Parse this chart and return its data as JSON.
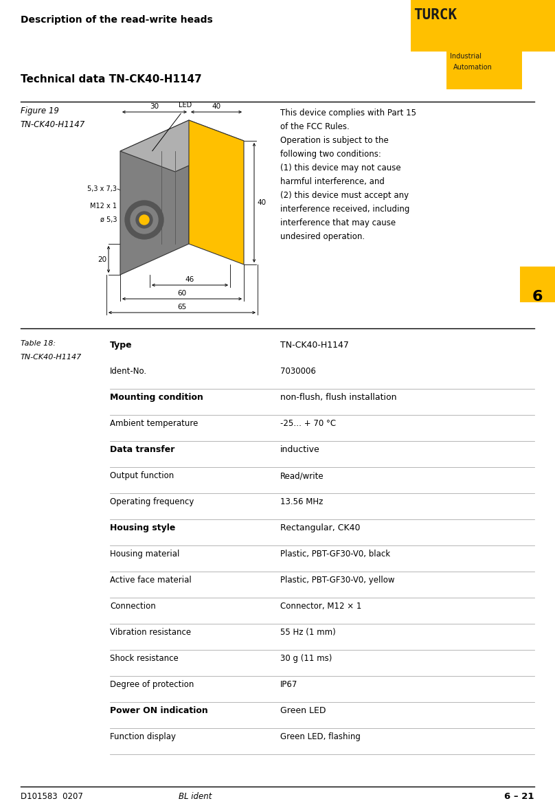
{
  "page_width": 8.08,
  "page_height": 11.66,
  "bg_color": "#ffffff",
  "header_text": "Description of the read-write heads",
  "turck_logo_text": "TURCK",
  "turck_sub1": "Industrial",
  "turck_sub2": "Automation",
  "turck_yellow": "#FFC000",
  "section_title": "Technical data TN-CK40-H1147",
  "figure_label1": "Figure 19",
  "figure_label2": "TN-CK40-H1147",
  "fcc_text": "This device complies with Part 15\nof the FCC Rules.\nOperation is subject to the\nfollowing two conditions:\n(1) this device may not cause\nharmful interference, and\n(2) this device must accept any\ninterference received, including\ninterference that may cause\nundesired operation.",
  "table_label1": "Table 18:",
  "table_label2": "TN-CK40-H1147",
  "table_data": [
    [
      "Type",
      "TN-CK40-H1147"
    ],
    [
      "Ident-No.",
      "7030006"
    ],
    [
      "Mounting condition",
      "non-flush, flush installation"
    ],
    [
      "Ambient temperature",
      "-25… + 70 °C"
    ],
    [
      "Data transfer",
      "inductive"
    ],
    [
      "Output function",
      "Read/write"
    ],
    [
      "Operating frequency",
      "13.56 MHz"
    ],
    [
      "Housing style",
      "Rectangular, CK40"
    ],
    [
      "Housing material",
      "Plastic, PBT-GF30-V0, black"
    ],
    [
      "Active face material",
      "Plastic, PBT-GF30-V0, yellow"
    ],
    [
      "Connection",
      "Connector, M12 × 1"
    ],
    [
      "Vibration resistance",
      "55 Hz (1 mm)"
    ],
    [
      "Shock resistance",
      "30 g (11 ms)"
    ],
    [
      "Degree of protection",
      "IP67"
    ],
    [
      "Power ON indication",
      "Green LED"
    ],
    [
      "Function display",
      "Green LED, flashing"
    ]
  ],
  "bold_rows": [
    0,
    2,
    4,
    7,
    14
  ],
  "footer_left": "D101583  0207",
  "footer_center": "BL ident",
  "footer_right": "6 – 21",
  "page_num": "6"
}
